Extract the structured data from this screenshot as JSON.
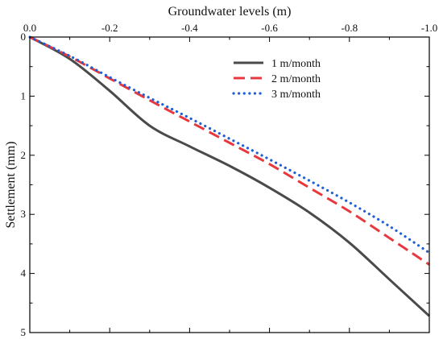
{
  "chart_data": {
    "type": "line",
    "title": "",
    "xlabel": "Groundwater levels (m)",
    "ylabel": "Settlement (mm)",
    "x_axis_position": "top",
    "x_reversed": true,
    "y_reversed": true,
    "xlim": [
      0,
      -1.0
    ],
    "ylim": [
      0,
      5
    ],
    "x_ticks": [
      0,
      -0.2,
      -0.4,
      -0.6,
      -0.8,
      -1.0
    ],
    "x_tick_labels": [
      "0.0",
      "-0.2",
      "-0.4",
      "-0.6",
      "-0.8",
      "-1.0"
    ],
    "y_ticks": [
      0,
      1,
      2,
      3,
      4,
      5
    ],
    "y_tick_labels": [
      "0",
      "1",
      "2",
      "3",
      "4",
      "5"
    ],
    "grid": false,
    "legend_position": "top-right",
    "series": [
      {
        "name": "1 m/month",
        "color": "#4a4a4a",
        "dash": "solid",
        "x": [
          0,
          -0.1,
          -0.2,
          -0.3,
          -0.4,
          -0.5,
          -0.6,
          -0.7,
          -0.8,
          -0.9,
          -1.0
        ],
        "y": [
          0,
          0.37,
          0.91,
          1.5,
          1.85,
          2.18,
          2.55,
          2.97,
          3.48,
          4.1,
          4.72
        ]
      },
      {
        "name": "2 m/month",
        "color": "#e8383d",
        "dash": "dashed",
        "x": [
          0,
          -0.1,
          -0.2,
          -0.3,
          -0.4,
          -0.5,
          -0.6,
          -0.7,
          -0.8,
          -0.9,
          -1.0
        ],
        "y": [
          0,
          0.33,
          0.7,
          1.07,
          1.43,
          1.79,
          2.15,
          2.55,
          2.95,
          3.4,
          3.85
        ]
      },
      {
        "name": "3 m/month",
        "color": "#1f5fd6",
        "dash": "dotted",
        "x": [
          0,
          -0.1,
          -0.2,
          -0.3,
          -0.4,
          -0.5,
          -0.6,
          -0.7,
          -0.8,
          -0.9,
          -1.0
        ],
        "y": [
          0,
          0.32,
          0.68,
          1.03,
          1.37,
          1.72,
          2.07,
          2.43,
          2.8,
          3.2,
          3.65
        ]
      }
    ]
  }
}
